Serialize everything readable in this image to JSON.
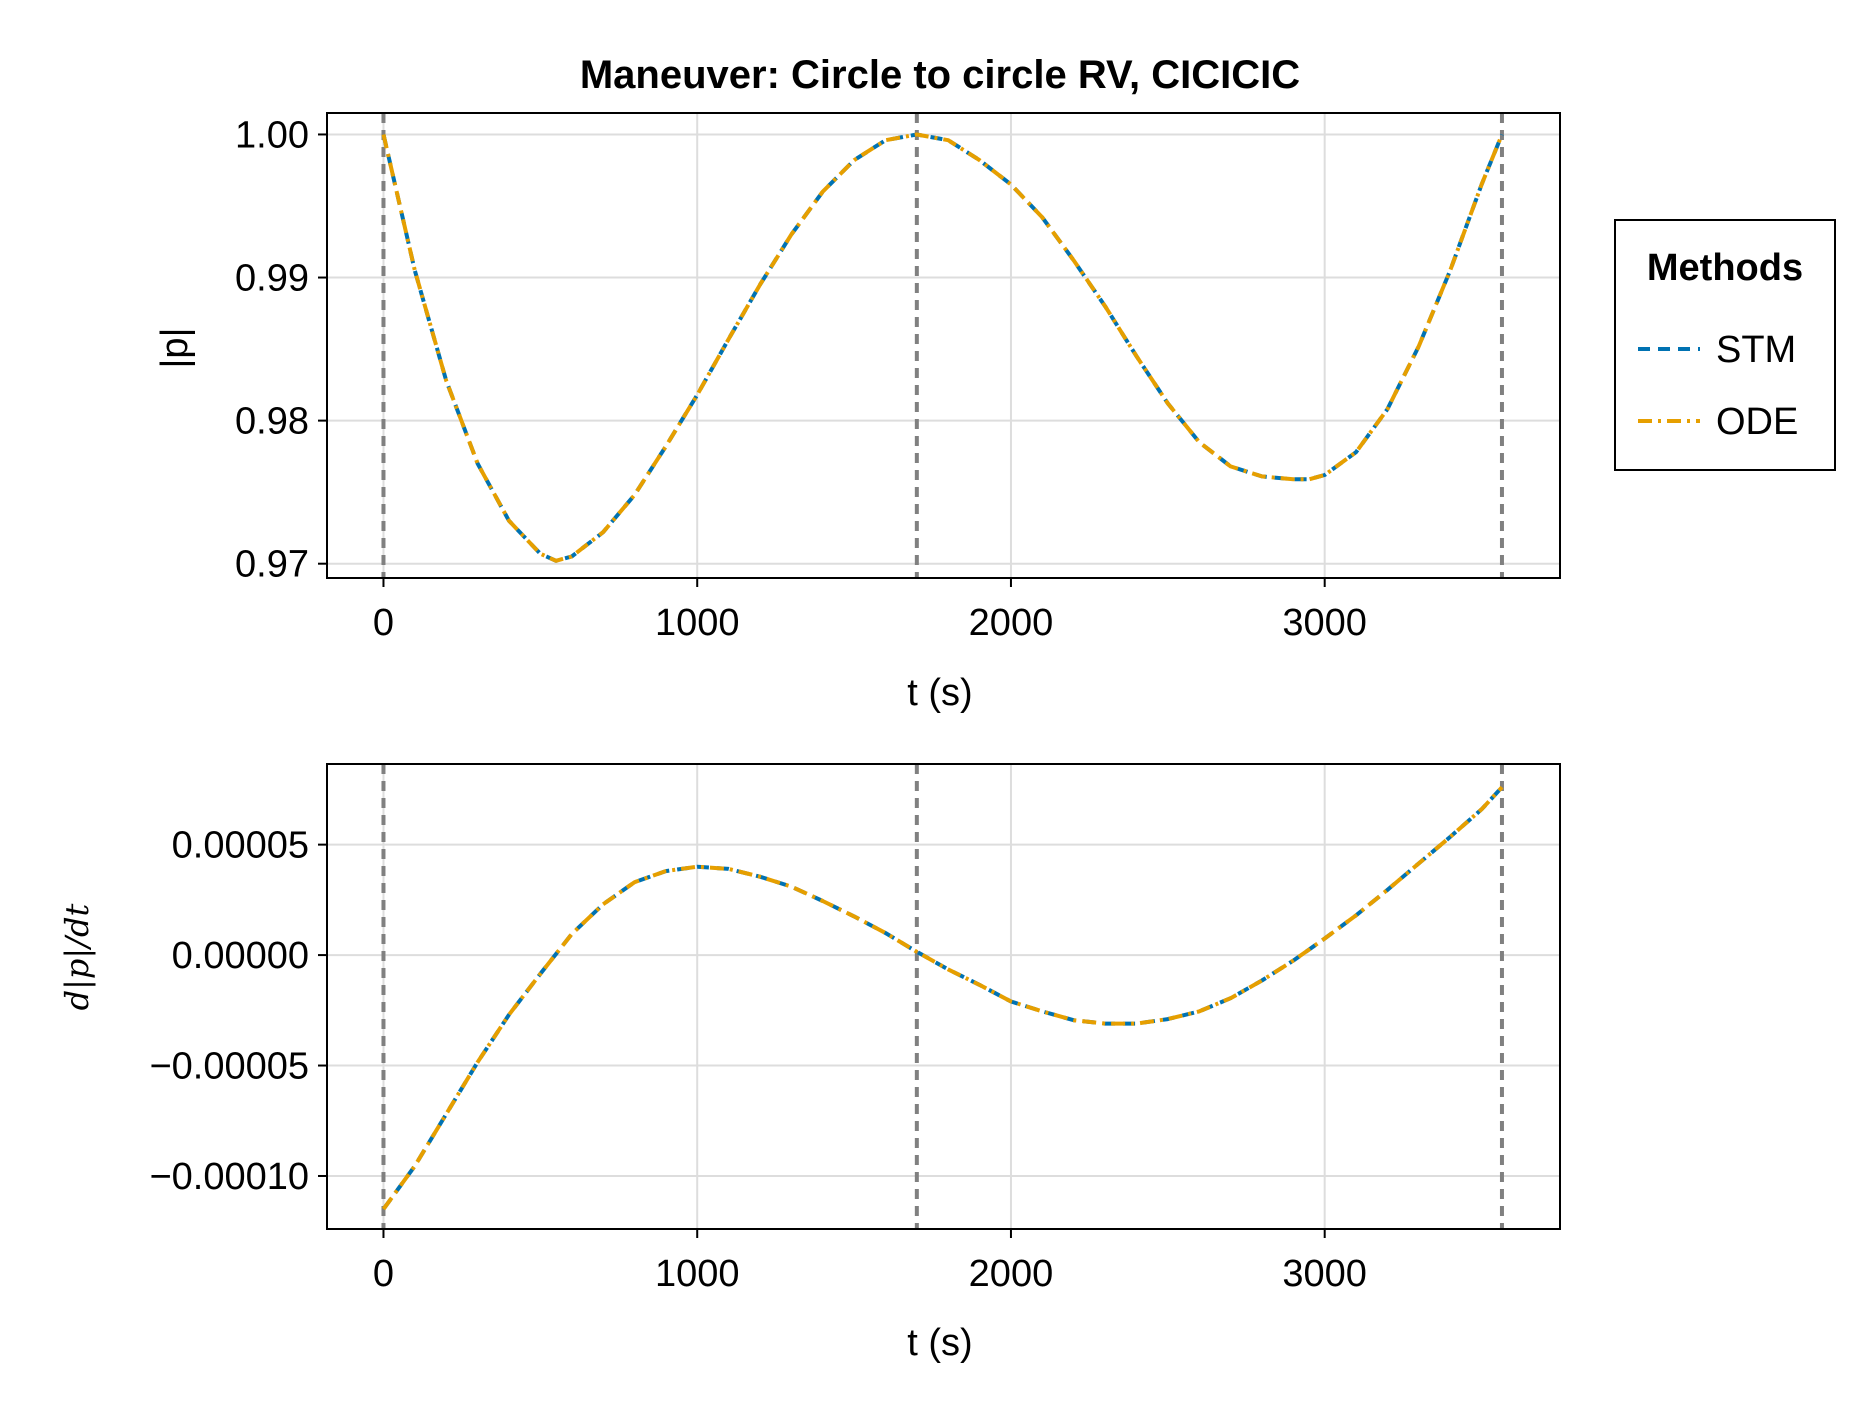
{
  "title": "Maneuver: Circle to circle RV, CICICIC",
  "legend": {
    "title": "Methods",
    "entries": [
      {
        "label": "STM",
        "color": "#0072b2",
        "style": "dash"
      },
      {
        "label": "ODE",
        "color": "#e69f00",
        "style": "dashdot"
      }
    ]
  },
  "colors": {
    "STM": "#0072b2",
    "ODE": "#e69f00",
    "vline": "#808080",
    "grid": "#dddddd"
  },
  "chart_data": [
    {
      "type": "line",
      "xlabel": "t (s)",
      "ylabel": "|p|",
      "xlim": [
        -180,
        3750
      ],
      "ylim": [
        0.969,
        1.0015
      ],
      "xticks": [
        {
          "value": 0,
          "label": "0"
        },
        {
          "value": 1000,
          "label": "1000"
        },
        {
          "value": 2000,
          "label": "2000"
        },
        {
          "value": 3000,
          "label": "3000"
        }
      ],
      "yticks": [
        {
          "value": 0.97,
          "label": "0.97"
        },
        {
          "value": 0.98,
          "label": "0.98"
        },
        {
          "value": 0.99,
          "label": "0.99"
        },
        {
          "value": 1.0,
          "label": "1.00"
        }
      ],
      "vlines": [
        0,
        1700,
        3565
      ],
      "grid": true,
      "x": [
        0,
        100,
        200,
        300,
        400,
        500,
        550,
        600,
        700,
        800,
        900,
        1000,
        1100,
        1200,
        1300,
        1400,
        1500,
        1600,
        1700,
        1800,
        1900,
        2000,
        2100,
        2200,
        2300,
        2400,
        2500,
        2600,
        2700,
        2800,
        2900,
        2950,
        3000,
        3100,
        3200,
        3300,
        3400,
        3500,
        3565
      ],
      "series": [
        {
          "name": "STM",
          "values": [
            1.0,
            0.9905,
            0.9828,
            0.977,
            0.973,
            0.9707,
            0.9702,
            0.9705,
            0.9722,
            0.9748,
            0.9782,
            0.9818,
            0.9857,
            0.9895,
            0.993,
            0.996,
            0.9982,
            0.9996,
            1.0,
            0.9996,
            0.9982,
            0.9965,
            0.9942,
            0.9912,
            0.988,
            0.9845,
            0.9812,
            0.9785,
            0.9768,
            0.9761,
            0.9759,
            0.9759,
            0.9762,
            0.9778,
            0.9808,
            0.9852,
            0.9905,
            0.9965,
            1.0
          ]
        },
        {
          "name": "ODE",
          "values": [
            1.0,
            0.9905,
            0.9828,
            0.977,
            0.973,
            0.9707,
            0.9702,
            0.9705,
            0.9722,
            0.9748,
            0.9782,
            0.9818,
            0.9857,
            0.9895,
            0.993,
            0.996,
            0.9982,
            0.9996,
            1.0,
            0.9996,
            0.9982,
            0.9965,
            0.9942,
            0.9912,
            0.988,
            0.9845,
            0.9812,
            0.9785,
            0.9768,
            0.9761,
            0.9759,
            0.9759,
            0.9762,
            0.9778,
            0.9808,
            0.9852,
            0.9905,
            0.9965,
            1.0
          ]
        }
      ]
    },
    {
      "type": "line",
      "xlabel": "t (s)",
      "ylabel": "d|p|/dt",
      "xlim": [
        -180,
        3750
      ],
      "ylim": [
        -0.000124,
        8.65e-05
      ],
      "xticks": [
        {
          "value": 0,
          "label": "0"
        },
        {
          "value": 1000,
          "label": "1000"
        },
        {
          "value": 2000,
          "label": "2000"
        },
        {
          "value": 3000,
          "label": "3000"
        }
      ],
      "yticks": [
        {
          "value": -0.0001,
          "label": "−0.00010"
        },
        {
          "value": -5e-05,
          "label": "−0.00005"
        },
        {
          "value": 0,
          "label": "0.00000"
        },
        {
          "value": 5e-05,
          "label": "0.00005"
        }
      ],
      "vlines": [
        0,
        1700,
        3565
      ],
      "grid": true,
      "x": [
        0,
        100,
        200,
        300,
        400,
        500,
        600,
        700,
        800,
        900,
        1000,
        1100,
        1200,
        1300,
        1400,
        1500,
        1600,
        1700,
        1800,
        1900,
        2000,
        2100,
        2200,
        2300,
        2400,
        2500,
        2600,
        2700,
        2800,
        2900,
        3000,
        3100,
        3200,
        3300,
        3400,
        3500,
        3565
      ],
      "series": [
        {
          "name": "STM",
          "values": [
            -0.000115,
            -9.55e-05,
            -7.2e-05,
            -4.85e-05,
            -2.7e-05,
            -8.5e-06,
            9.5e-06,
            2.3e-05,
            3.3e-05,
            3.8e-05,
            4e-05,
            3.9e-05,
            3.55e-05,
            3.1e-05,
            2.45e-05,
            1.75e-05,
            1e-05,
            1.5e-06,
            -6.5e-06,
            -1.35e-05,
            -2.1e-05,
            -2.55e-05,
            -2.95e-05,
            -3.1e-05,
            -3.1e-05,
            -2.9e-05,
            -2.55e-05,
            -1.95e-05,
            -1.15e-05,
            -2.5e-06,
            7.5e-06,
            1.8e-05,
            2.95e-05,
            4.15e-05,
            5.35e-05,
            6.6e-05,
            7.6e-05
          ]
        },
        {
          "name": "ODE",
          "values": [
            -0.000115,
            -9.55e-05,
            -7.2e-05,
            -4.85e-05,
            -2.7e-05,
            -8.5e-06,
            9.5e-06,
            2.3e-05,
            3.3e-05,
            3.8e-05,
            4e-05,
            3.9e-05,
            3.55e-05,
            3.1e-05,
            2.45e-05,
            1.75e-05,
            1e-05,
            1.5e-06,
            -6.5e-06,
            -1.35e-05,
            -2.1e-05,
            -2.55e-05,
            -2.95e-05,
            -3.1e-05,
            -3.1e-05,
            -2.9e-05,
            -2.55e-05,
            -1.95e-05,
            -1.15e-05,
            -2.5e-06,
            7.5e-06,
            1.8e-05,
            2.95e-05,
            4.15e-05,
            5.35e-05,
            6.6e-05,
            7.6e-05
          ]
        }
      ]
    }
  ]
}
